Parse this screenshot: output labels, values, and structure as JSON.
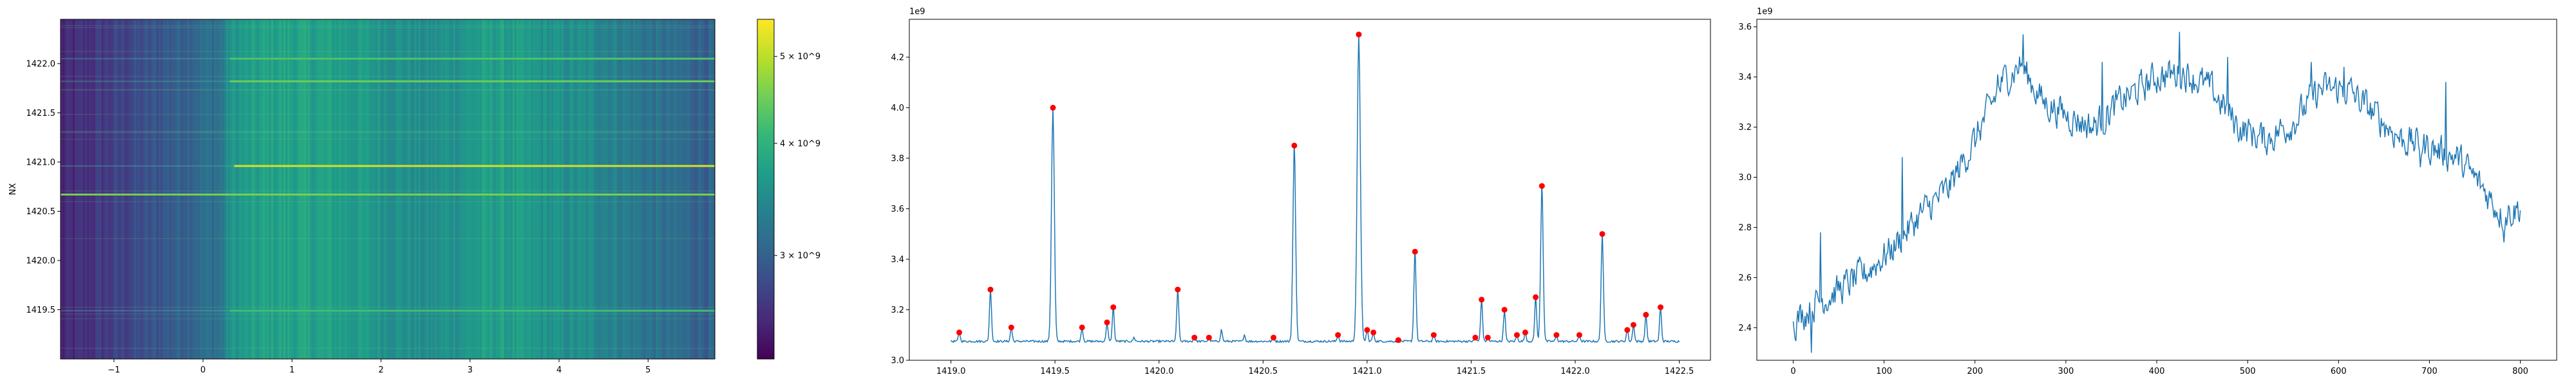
{
  "colors": {
    "line": "#1f77b4",
    "peak": "#ff0000",
    "viridis": [
      "#440154",
      "#482878",
      "#3e4989",
      "#31688e",
      "#26828e",
      "#1f9e89",
      "#35b779",
      "#6ece58",
      "#b5de2b",
      "#fde725"
    ]
  },
  "chart_data": [
    {
      "type": "heatmap",
      "ylabel": "NX",
      "xlabel": "",
      "xlim": [
        -1.6,
        5.75
      ],
      "ylim": [
        1419.0,
        1422.45
      ],
      "xticks": [
        "−1",
        "0",
        "1",
        "2",
        "3",
        "4",
        "5"
      ],
      "xtick_values": [
        -1,
        0,
        1,
        2,
        3,
        4,
        5
      ],
      "yticks": [
        "1419.5",
        "1420.0",
        "1420.5",
        "1421.0",
        "1421.5",
        "1422.0"
      ],
      "ytick_values": [
        1419.5,
        1420.0,
        1420.5,
        1421.0,
        1421.5,
        1422.0
      ],
      "colorbar": {
        "scale": "log",
        "range": [
          2300000000.0,
          5500000000.0
        ],
        "tick_values": [
          3000000000.0,
          4000000000.0,
          5000000000.0
        ],
        "tick_labels": [
          "3 × 10^9",
          "4 × 10^9",
          "5 × 10^9"
        ]
      },
      "column_profile": [
        {
          "x": -1.6,
          "v": 2500000000.0
        },
        {
          "x": -0.6,
          "v": 2850000000.0
        },
        {
          "x": -0.1,
          "v": 3100000000.0
        },
        {
          "x": 0.2,
          "v": 3200000000.0
        },
        {
          "x": 0.3,
          "v": 3600000000.0
        },
        {
          "x": 0.8,
          "v": 3800000000.0
        },
        {
          "x": 1.5,
          "v": 3750000000.0
        },
        {
          "x": 2.5,
          "v": 3500000000.0
        },
        {
          "x": 3.3,
          "v": 3750000000.0
        },
        {
          "x": 3.8,
          "v": 3600000000.0
        },
        {
          "x": 4.5,
          "v": 3450000000.0
        },
        {
          "x": 5.0,
          "v": 3200000000.0
        },
        {
          "x": 5.75,
          "v": 3000000000.0
        }
      ],
      "bright_rows": [
        {
          "y": 1422.05,
          "v": 4300000000.0,
          "x_start": 0.3
        },
        {
          "y": 1421.82,
          "v": 4500000000.0,
          "x_start": 0.3
        },
        {
          "y": 1420.96,
          "v": 5200000000.0,
          "x_start": 0.35
        },
        {
          "y": 1420.67,
          "v": 4600000000.0,
          "x_start": -1.6
        },
        {
          "y": 1419.49,
          "v": 4200000000.0,
          "x_start": 0.3
        }
      ]
    },
    {
      "type": "line",
      "xlabel": "",
      "ylabel": "",
      "y_offset_label": "1e9",
      "xlim": [
        1418.8,
        1422.65
      ],
      "ylim": [
        3.0,
        4.35
      ],
      "xticks": [
        "1419.0",
        "1419.5",
        "1420.0",
        "1420.5",
        "1421.0",
        "1421.5",
        "1422.0",
        "1422.5"
      ],
      "xtick_values": [
        1419.0,
        1419.5,
        1420.0,
        1420.5,
        1421.0,
        1421.5,
        1422.0,
        1422.5
      ],
      "yticks": [
        "3.0",
        "3.2",
        "3.4",
        "3.6",
        "3.8",
        "4.0",
        "4.2"
      ],
      "ytick_values": [
        3.0,
        3.2,
        3.4,
        3.6,
        3.8,
        4.0,
        4.2
      ],
      "baseline": 3.075,
      "peaks": [
        {
          "x": 1419.04,
          "y": 3.11
        },
        {
          "x": 1419.19,
          "y": 3.28
        },
        {
          "x": 1419.29,
          "y": 3.13
        },
        {
          "x": 1419.49,
          "y": 4.0
        },
        {
          "x": 1419.63,
          "y": 3.13
        },
        {
          "x": 1419.75,
          "y": 3.15
        },
        {
          "x": 1419.78,
          "y": 3.21
        },
        {
          "x": 1420.09,
          "y": 3.28
        },
        {
          "x": 1420.17,
          "y": 3.09
        },
        {
          "x": 1420.24,
          "y": 3.09
        },
        {
          "x": 1420.55,
          "y": 3.09
        },
        {
          "x": 1420.65,
          "y": 3.85
        },
        {
          "x": 1420.86,
          "y": 3.1
        },
        {
          "x": 1420.96,
          "y": 4.29
        },
        {
          "x": 1421.0,
          "y": 3.12
        },
        {
          "x": 1421.03,
          "y": 3.11
        },
        {
          "x": 1421.15,
          "y": 3.08
        },
        {
          "x": 1421.23,
          "y": 3.43
        },
        {
          "x": 1421.32,
          "y": 3.1
        },
        {
          "x": 1421.52,
          "y": 3.09
        },
        {
          "x": 1421.55,
          "y": 3.24
        },
        {
          "x": 1421.58,
          "y": 3.09
        },
        {
          "x": 1421.66,
          "y": 3.2
        },
        {
          "x": 1421.72,
          "y": 3.1
        },
        {
          "x": 1421.76,
          "y": 3.11
        },
        {
          "x": 1421.81,
          "y": 3.25
        },
        {
          "x": 1421.84,
          "y": 3.69
        },
        {
          "x": 1421.91,
          "y": 3.1
        },
        {
          "x": 1422.02,
          "y": 3.1
        },
        {
          "x": 1422.13,
          "y": 3.5
        },
        {
          "x": 1422.25,
          "y": 3.12
        },
        {
          "x": 1422.28,
          "y": 3.14
        },
        {
          "x": 1422.34,
          "y": 3.18
        },
        {
          "x": 1422.41,
          "y": 3.21
        }
      ],
      "small_bumps": [
        {
          "x": 1420.3,
          "y": 3.12
        },
        {
          "x": 1420.41,
          "y": 3.1
        },
        {
          "x": 1419.88,
          "y": 3.09
        }
      ],
      "x_range": [
        1419.0,
        1422.5
      ]
    },
    {
      "type": "line",
      "xlabel": "",
      "ylabel": "",
      "y_offset_label": "1e9",
      "xlim": [
        -40,
        840
      ],
      "ylim": [
        2.27,
        3.63
      ],
      "xticks": [
        "0",
        "100",
        "200",
        "300",
        "400",
        "500",
        "600",
        "700",
        "800"
      ],
      "xtick_values": [
        0,
        100,
        200,
        300,
        400,
        500,
        600,
        700,
        800
      ],
      "yticks": [
        "2.4",
        "2.6",
        "2.8",
        "3.0",
        "3.2",
        "3.4",
        "3.6"
      ],
      "ytick_values": [
        2.4,
        2.6,
        2.8,
        3.0,
        3.2,
        3.4,
        3.6
      ],
      "trend": [
        {
          "x": 0,
          "y": 2.42
        },
        {
          "x": 25,
          "y": 2.5
        },
        {
          "x": 50,
          "y": 2.55
        },
        {
          "x": 80,
          "y": 2.62
        },
        {
          "x": 110,
          "y": 2.72
        },
        {
          "x": 140,
          "y": 2.85
        },
        {
          "x": 170,
          "y": 2.95
        },
        {
          "x": 200,
          "y": 3.15
        },
        {
          "x": 230,
          "y": 3.38
        },
        {
          "x": 250,
          "y": 3.45
        },
        {
          "x": 275,
          "y": 3.3
        },
        {
          "x": 300,
          "y": 3.25
        },
        {
          "x": 330,
          "y": 3.2
        },
        {
          "x": 360,
          "y": 3.3
        },
        {
          "x": 400,
          "y": 3.4
        },
        {
          "x": 430,
          "y": 3.42
        },
        {
          "x": 460,
          "y": 3.35
        },
        {
          "x": 490,
          "y": 3.2
        },
        {
          "x": 520,
          "y": 3.15
        },
        {
          "x": 550,
          "y": 3.22
        },
        {
          "x": 580,
          "y": 3.35
        },
        {
          "x": 610,
          "y": 3.35
        },
        {
          "x": 640,
          "y": 3.25
        },
        {
          "x": 670,
          "y": 3.15
        },
        {
          "x": 700,
          "y": 3.12
        },
        {
          "x": 730,
          "y": 3.08
        },
        {
          "x": 760,
          "y": 2.95
        },
        {
          "x": 780,
          "y": 2.85
        },
        {
          "x": 800,
          "y": 2.88
        }
      ],
      "spikes": [
        {
          "x": 20,
          "y": 2.3
        },
        {
          "x": 30,
          "y": 2.78
        },
        {
          "x": 120,
          "y": 3.08
        },
        {
          "x": 200,
          "y": 3.12
        },
        {
          "x": 225,
          "y": 3.41
        },
        {
          "x": 253,
          "y": 3.57
        },
        {
          "x": 340,
          "y": 3.46
        },
        {
          "x": 425,
          "y": 3.58
        },
        {
          "x": 478,
          "y": 3.48
        },
        {
          "x": 570,
          "y": 3.46
        },
        {
          "x": 606,
          "y": 3.44
        },
        {
          "x": 690,
          "y": 3.04
        },
        {
          "x": 718,
          "y": 3.38
        },
        {
          "x": 782,
          "y": 2.74
        }
      ],
      "noise_amplitude": 0.07,
      "x_range": [
        0,
        800
      ]
    }
  ]
}
